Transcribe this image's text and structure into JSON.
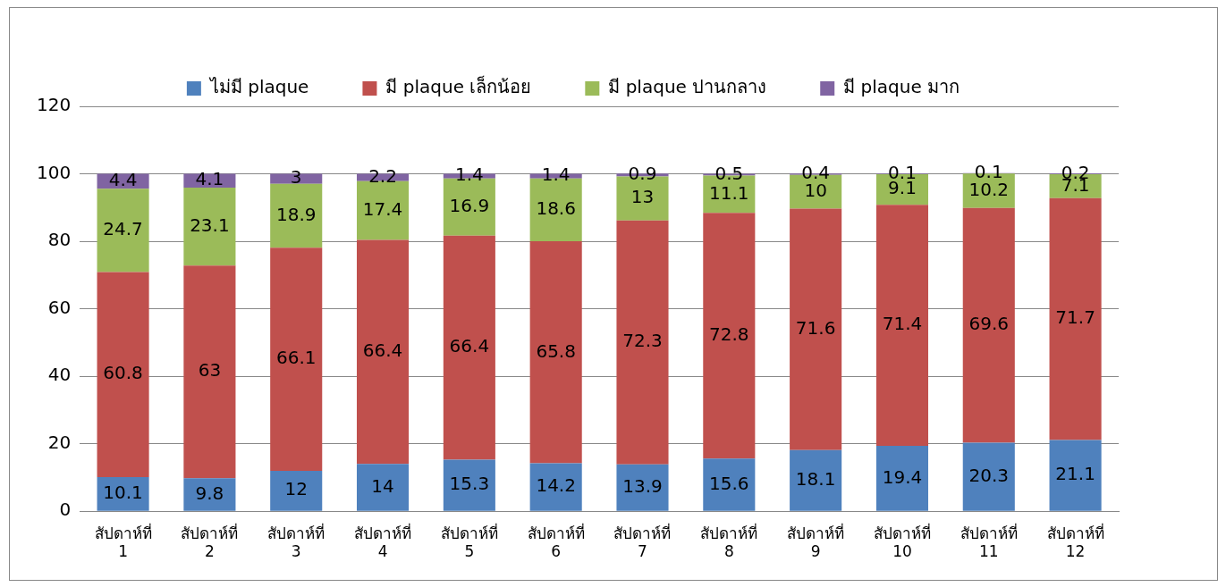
{
  "chart_data": {
    "type": "bar",
    "stacked": true,
    "categories": [
      "สัปดาห์ที่ 1",
      "สัปดาห์ที่ 2",
      "สัปดาห์ที่ 3",
      "สัปดาห์ที่ 4",
      "สัปดาห์ที่ 5",
      "สัปดาห์ที่ 6",
      "สัปดาห์ที่ 7",
      "สัปดาห์ที่ 8",
      "สัปดาห์ที่ 9",
      "สัปดาห์ที่ 10",
      "สัปดาห์ที่ 11",
      "สัปดาห์ที่ 12"
    ],
    "series": [
      {
        "name": "ไม่มี plaque",
        "color": "#4f81bd",
        "values": [
          10.1,
          9.8,
          12,
          14,
          15.3,
          14.2,
          13.9,
          15.6,
          18.1,
          19.4,
          20.3,
          21.1
        ]
      },
      {
        "name": "มี plaque เล็กน้อย",
        "color": "#c0504d",
        "values": [
          60.8,
          63,
          66.1,
          66.4,
          66.4,
          65.8,
          72.3,
          72.8,
          71.6,
          71.4,
          69.6,
          71.7
        ]
      },
      {
        "name": "มี plaque ปานกลาง",
        "color": "#9bbb59",
        "values": [
          24.7,
          23.1,
          18.9,
          17.4,
          16.9,
          18.6,
          13,
          11.1,
          10,
          9.1,
          10.2,
          7.1
        ]
      },
      {
        "name": "มี plaque มาก",
        "color": "#8064a2",
        "values": [
          4.4,
          4.1,
          3,
          2.2,
          1.4,
          1.4,
          0.9,
          0.5,
          0.4,
          0.1,
          0.1,
          0.2
        ]
      }
    ],
    "ylim": [
      0,
      120
    ],
    "yticks": [
      0,
      20,
      40,
      60,
      80,
      100,
      120
    ],
    "grid": "y",
    "legend": "top",
    "data_labels": true
  }
}
